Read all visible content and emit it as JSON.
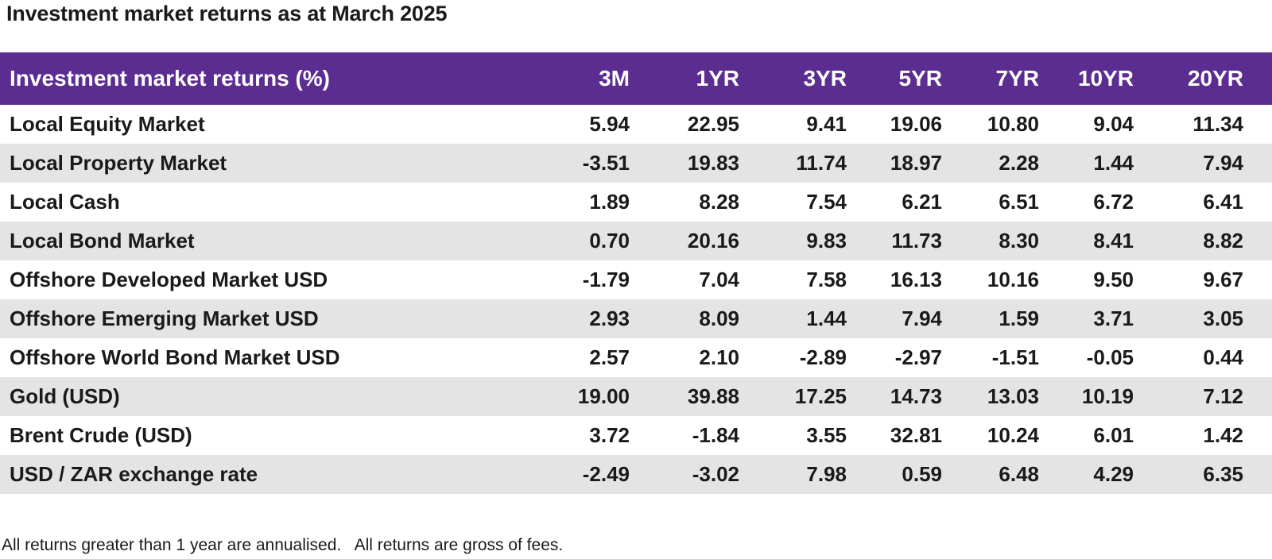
{
  "title": "Investment market returns as at March 2025",
  "table": {
    "headers": [
      "Investment market returns (%)",
      "3M",
      "1YR",
      "3YR",
      "5YR",
      "7YR",
      "10YR",
      "20YR"
    ],
    "rows": [
      [
        "Local Equity Market",
        "5.94",
        "22.95",
        "9.41",
        "19.06",
        "10.80",
        "9.04",
        "11.34"
      ],
      [
        "Local Property Market",
        "-3.51",
        "19.83",
        "11.74",
        "18.97",
        "2.28",
        "1.44",
        "7.94"
      ],
      [
        "Local Cash",
        "1.89",
        "8.28",
        "7.54",
        "6.21",
        "6.51",
        "6.72",
        "6.41"
      ],
      [
        "Local Bond Market",
        "0.70",
        "20.16",
        "9.83",
        "11.73",
        "8.30",
        "8.41",
        "8.82"
      ],
      [
        "Offshore Developed Market USD",
        "-1.79",
        "7.04",
        "7.58",
        "16.13",
        "10.16",
        "9.50",
        "9.67"
      ],
      [
        "Offshore Emerging Market USD",
        "2.93",
        "8.09",
        "1.44",
        "7.94",
        "1.59",
        "3.71",
        "3.05"
      ],
      [
        "Offshore World Bond Market USD",
        "2.57",
        "2.10",
        "-2.89",
        "-2.97",
        "-1.51",
        "-0.05",
        "0.44"
      ],
      [
        "Gold (USD)",
        "19.00",
        "39.88",
        "17.25",
        "14.73",
        "13.03",
        "10.19",
        "7.12"
      ],
      [
        "Brent Crude (USD)",
        "3.72",
        "-1.84",
        "3.55",
        "32.81",
        "10.24",
        "6.01",
        "1.42"
      ],
      [
        "USD / ZAR exchange rate",
        "-2.49",
        "-3.02",
        "7.98",
        "0.59",
        "6.48",
        "4.29",
        "6.35"
      ]
    ]
  },
  "footnote": "All returns greater than 1 year are annualised.   All returns are gross of fees.",
  "colors": {
    "header_bg": "#5c2d91",
    "shade_row": "#e4e4e5"
  }
}
